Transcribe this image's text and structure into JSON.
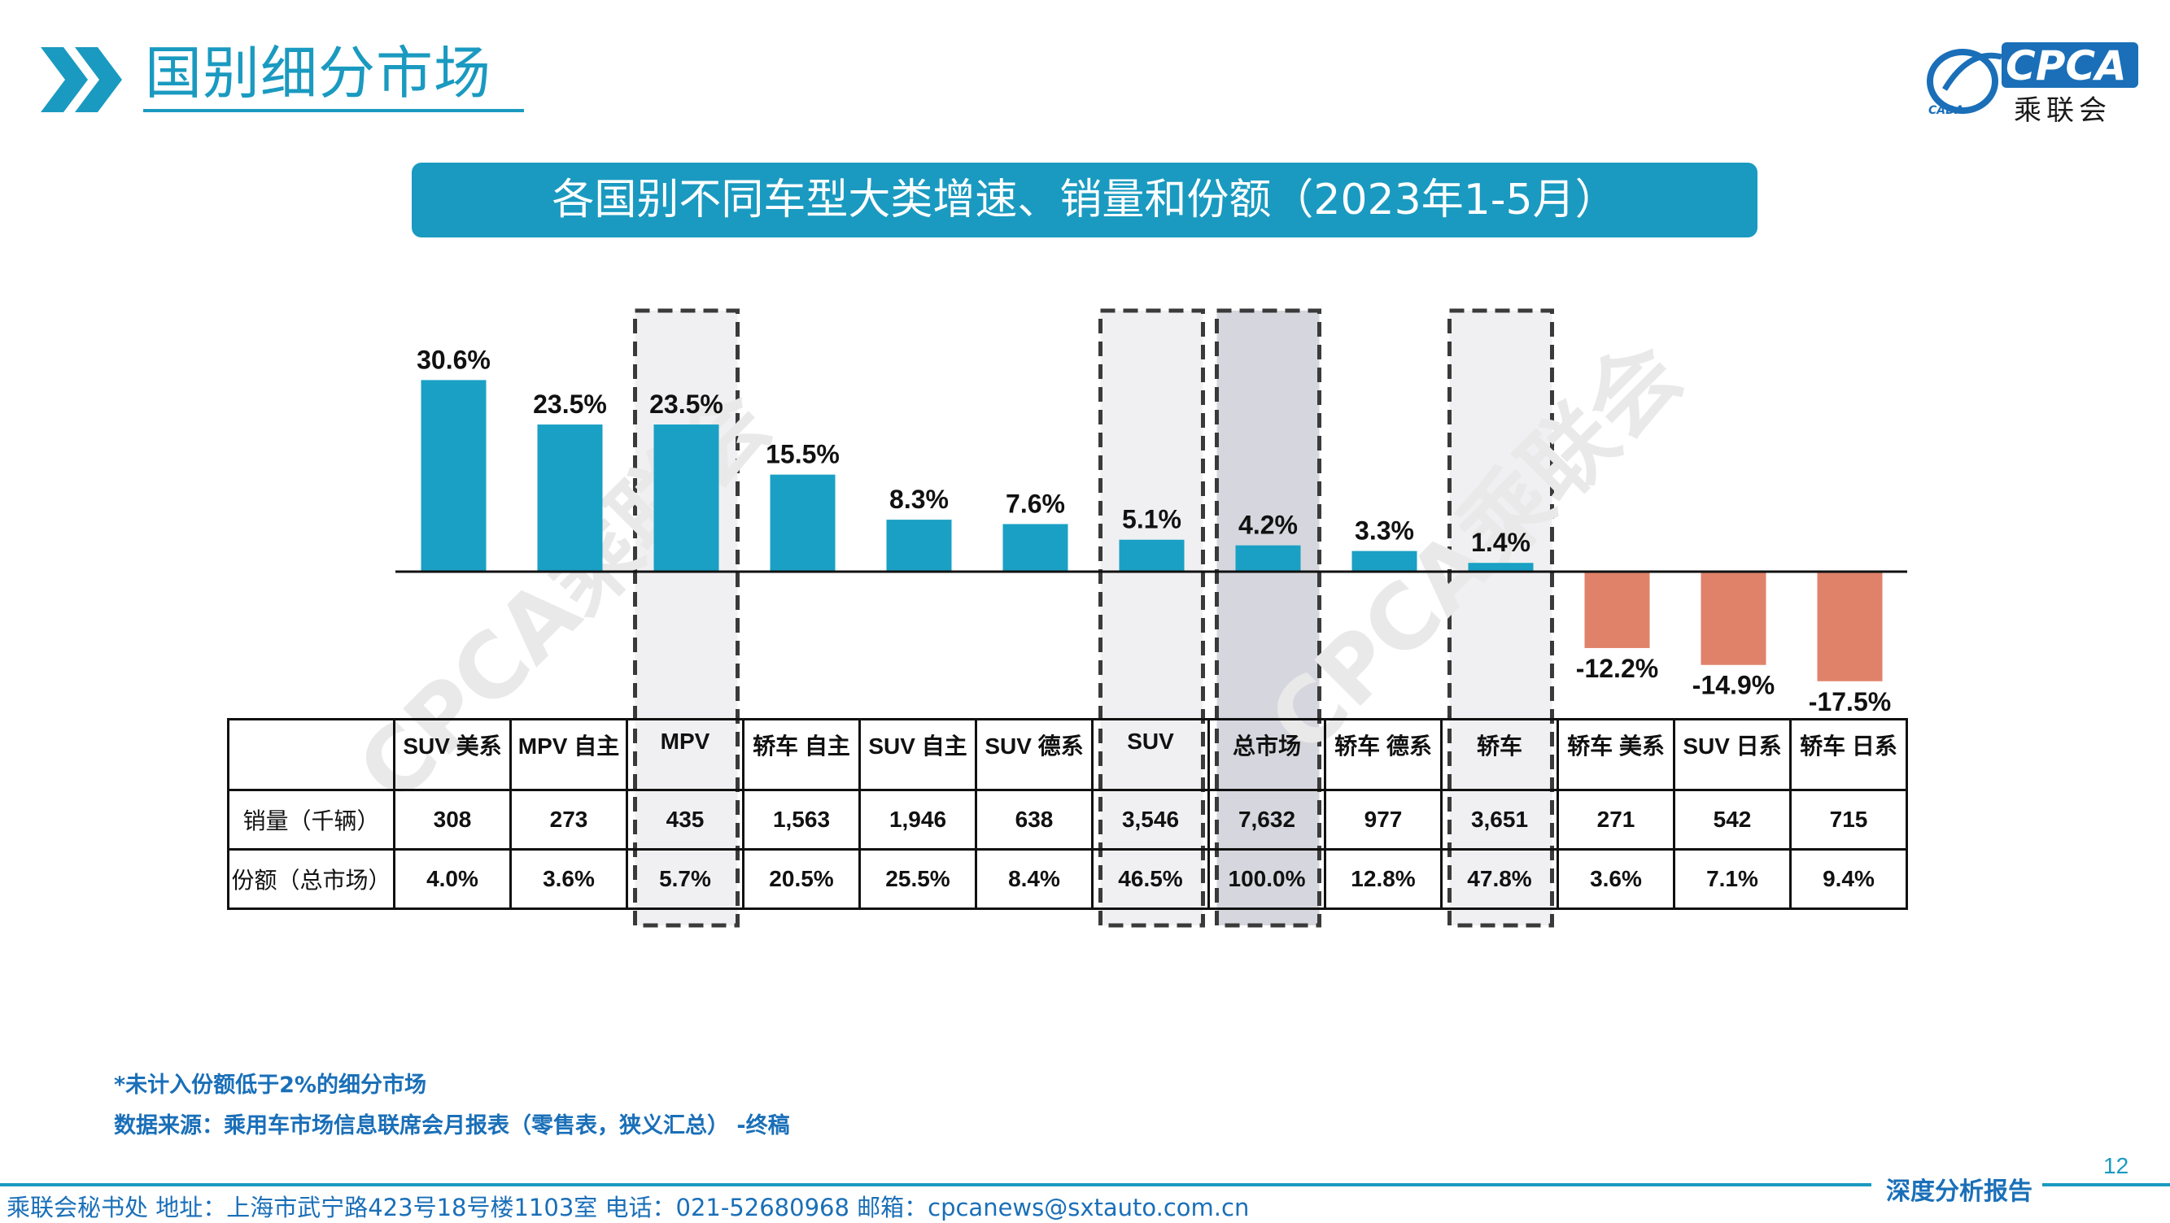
{
  "header": {
    "title": "国别细分市场",
    "logo_text": "CPCA",
    "logo_sub": "乘联会",
    "logo_small": "CADA"
  },
  "banner": {
    "text": "各国别不同车型大类增速、销量和份额（2023年1-5月）"
  },
  "colors": {
    "accent": "#1a9ac0",
    "positive_bar": "#1aa0c4",
    "negative_bar": "#e0826a",
    "highlight_bg": "#f0f0f2",
    "highlight_dark_bg": "#d6d6de"
  },
  "chart_data": {
    "type": "bar",
    "categories": [
      "SUV 美系",
      "MPV 自主",
      "MPV",
      "轿车 自主",
      "SUV 自主",
      "SUV 德系",
      "SUV",
      "总市场",
      "轿车 德系",
      "轿车",
      "轿车 美系",
      "SUV 日系",
      "轿车 日系"
    ],
    "values": [
      30.6,
      23.5,
      23.5,
      15.5,
      8.3,
      7.6,
      5.1,
      4.2,
      3.3,
      1.4,
      -12.2,
      -14.9,
      -17.5
    ],
    "data_labels": [
      "30.6%",
      "23.5%",
      "23.5%",
      "15.5%",
      "8.3%",
      "7.6%",
      "5.1%",
      "4.2%",
      "3.3%",
      "1.4%",
      "-12.2%",
      "-14.9%",
      "-17.5%"
    ],
    "highlighted": [
      "MPV",
      "SUV",
      "总市场",
      "轿车"
    ],
    "table": {
      "rows": [
        {
          "label": "销量（千辆）",
          "values": [
            "308",
            "273",
            "435",
            "1,563",
            "1,946",
            "638",
            "3,546",
            "7,632",
            "977",
            "3,651",
            "271",
            "542",
            "715"
          ]
        },
        {
          "label": "份额（总市场）",
          "values": [
            "4.0%",
            "3.6%",
            "5.7%",
            "20.5%",
            "25.5%",
            "8.4%",
            "46.5%",
            "100.0%",
            "12.8%",
            "47.8%",
            "3.6%",
            "7.1%",
            "9.4%"
          ]
        }
      ]
    }
  },
  "watermark": "CPCA乘联会",
  "footnotes": {
    "note1": "*未计入份额低于2%的细分市场",
    "note2": "数据来源：乘用车市场信息联席会月报表（零售表，狭义汇总） -终稿"
  },
  "footer": {
    "page_number": "12",
    "tag": "深度分析报告",
    "address": "乘联会秘书处   地址：上海市武宁路423号18号楼1103室  电话：021-52680968   邮箱：cpcanews@sxtauto.com.cn"
  }
}
